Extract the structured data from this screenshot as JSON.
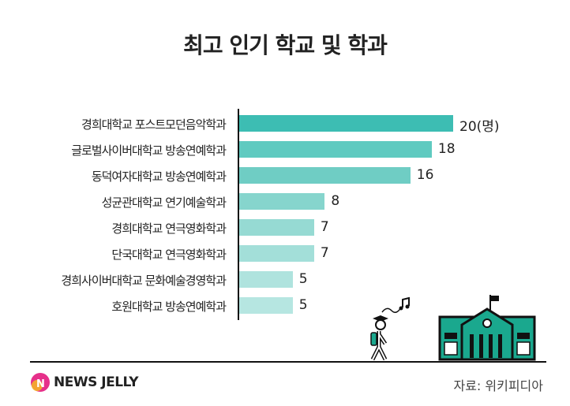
{
  "chart_data": {
    "type": "bar",
    "orientation": "horizontal",
    "title": "최고 인기 학교 및 학과",
    "categories": [
      "경희대학교 포스트모던음악학과",
      "글로벌사이버대학교 방송연예학과",
      "동덕여자대학교 방송연예학과",
      "성균관대학교 연기예술학과",
      "경희대학교 연극영화학과",
      "단국대학교 연극영화학과",
      "경희사이버대학교 문화예술경영학과",
      "호원대학교 방송연예학과"
    ],
    "values": [
      20,
      18,
      16,
      8,
      7,
      7,
      5,
      5
    ],
    "value_labels": [
      "20(명)",
      "18",
      "16",
      "8",
      "7",
      "7",
      "5",
      "5"
    ],
    "unit": "명",
    "xlim": [
      0,
      20
    ],
    "grid": false,
    "colors": [
      "#3dbdb3",
      "#5fcac0",
      "#6fcdc4",
      "#86d5cd",
      "#96dad3",
      "#a3dfd9",
      "#afe3de",
      "#b6e6e1"
    ]
  },
  "source": "자료: 위키피디아",
  "brand": "NEWS JELLY",
  "illustration_color": "#1aa88e"
}
